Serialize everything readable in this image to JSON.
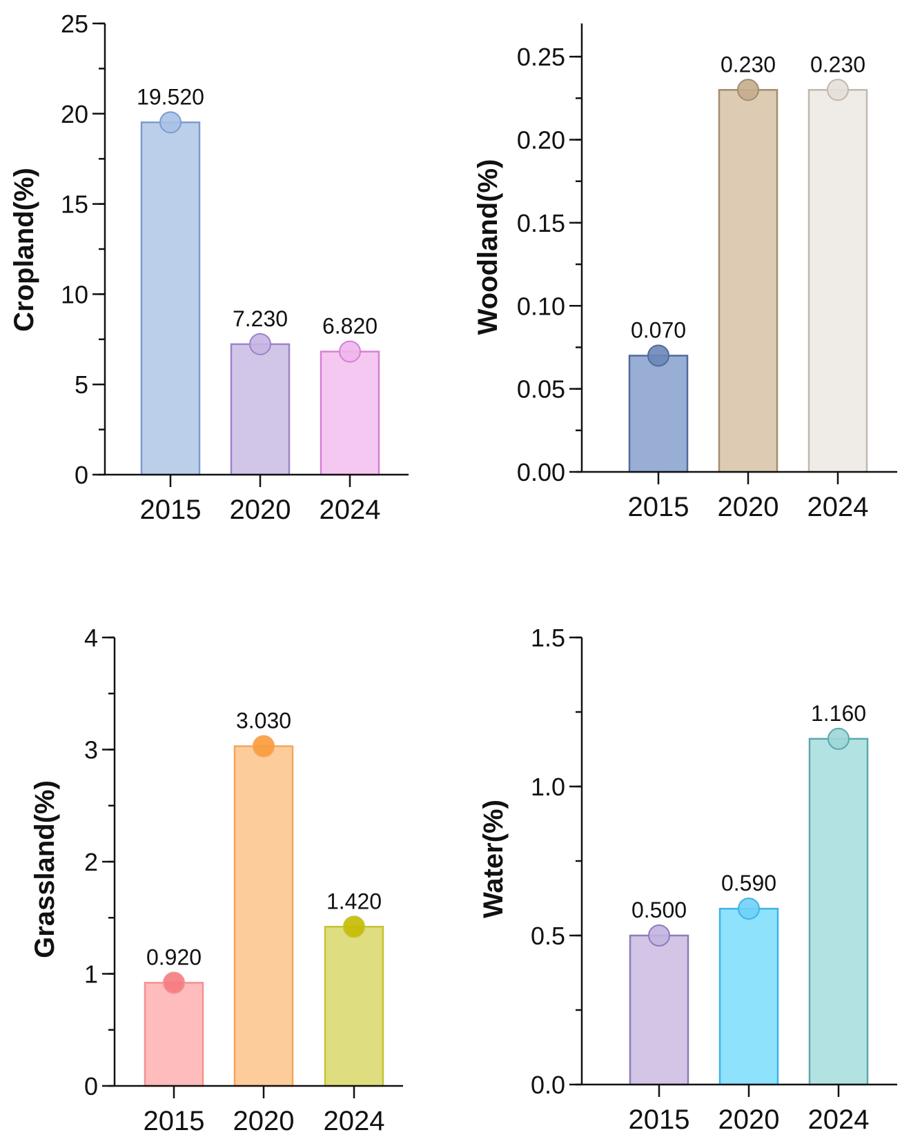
{
  "chart_data": [
    {
      "type": "bar",
      "ylabel": "Cropland(%)",
      "categories": [
        "2015",
        "2020",
        "2024"
      ],
      "values": [
        19.52,
        7.23,
        6.82
      ],
      "value_labels": [
        "19.520",
        "7.230",
        "6.820"
      ],
      "ylim": [
        0,
        25
      ],
      "yticks": [
        0,
        5,
        10,
        15,
        20,
        25
      ],
      "ytick_labels": [
        "0",
        "5",
        "10",
        "15",
        "20",
        "25"
      ],
      "minor_step": 2.5,
      "bar_fills": [
        "#bccfea",
        "#d2c6e8",
        "#f4c8f0"
      ],
      "bar_strokes": [
        "#7b9bd0",
        "#9d82c9",
        "#d77ed6"
      ],
      "dot_colors": [
        "#a9c1e6",
        "#c5b5e3",
        "#f0b6ec"
      ]
    },
    {
      "type": "bar",
      "ylabel": "Woodland(%)",
      "categories": [
        "2015",
        "2020",
        "2024"
      ],
      "values": [
        0.07,
        0.23,
        0.23
      ],
      "value_labels": [
        "0.070",
        "0.230",
        "0.230"
      ],
      "ylim": [
        0,
        0.27
      ],
      "yticks": [
        0,
        0.05,
        0.1,
        0.15,
        0.2,
        0.25
      ],
      "ytick_labels": [
        "0.00",
        "0.05",
        "0.10",
        "0.15",
        "0.20",
        "0.25"
      ],
      "minor_step": 0.025,
      "bar_fills": [
        "#98aed4",
        "#ddccb3",
        "#efebe6"
      ],
      "bar_strokes": [
        "#51699e",
        "#a18d70",
        "#c0b8ae"
      ],
      "dot_colors": [
        "#6c87b8",
        "#c4ad8c",
        "#e6e0d8"
      ]
    },
    {
      "type": "bar",
      "ylabel": "Grassland(%)",
      "categories": [
        "2015",
        "2020",
        "2024"
      ],
      "values": [
        0.92,
        3.03,
        1.42
      ],
      "value_labels": [
        "0.920",
        "3.030",
        "1.420"
      ],
      "ylim": [
        0,
        4
      ],
      "yticks": [
        0,
        1,
        2,
        3,
        4
      ],
      "ytick_labels": [
        "0",
        "1",
        "2",
        "3",
        "4"
      ],
      "minor_step": 0.5,
      "bar_fills": [
        "#ffbcbc",
        "#fdcc9b",
        "#dedd7f"
      ],
      "bar_strokes": [
        "#f59090",
        "#f5a55a",
        "#c7c331"
      ],
      "dot_colors": [
        "#f57a7e",
        "#fb9a3a",
        "#c5bb00"
      ]
    },
    {
      "type": "bar",
      "ylabel": "Water(%)",
      "categories": [
        "2015",
        "2020",
        "2024"
      ],
      "values": [
        0.5,
        0.59,
        1.16
      ],
      "value_labels": [
        "0.500",
        "0.590",
        "1.160"
      ],
      "ylim": [
        0,
        1.5
      ],
      "yticks": [
        0,
        0.5,
        1.0,
        1.5
      ],
      "ytick_labels": [
        "0.0",
        "0.5",
        "1.0",
        "1.5"
      ],
      "minor_step": 0.25,
      "bar_fills": [
        "#d2c5e6",
        "#8ee2fb",
        "#b3e2e3"
      ],
      "bar_strokes": [
        "#8e7cb6",
        "#3fb2ec",
        "#5aa9ab"
      ],
      "dot_colors": [
        "#c3b2e0",
        "#6fd1f7",
        "#9dd6d7"
      ]
    }
  ]
}
